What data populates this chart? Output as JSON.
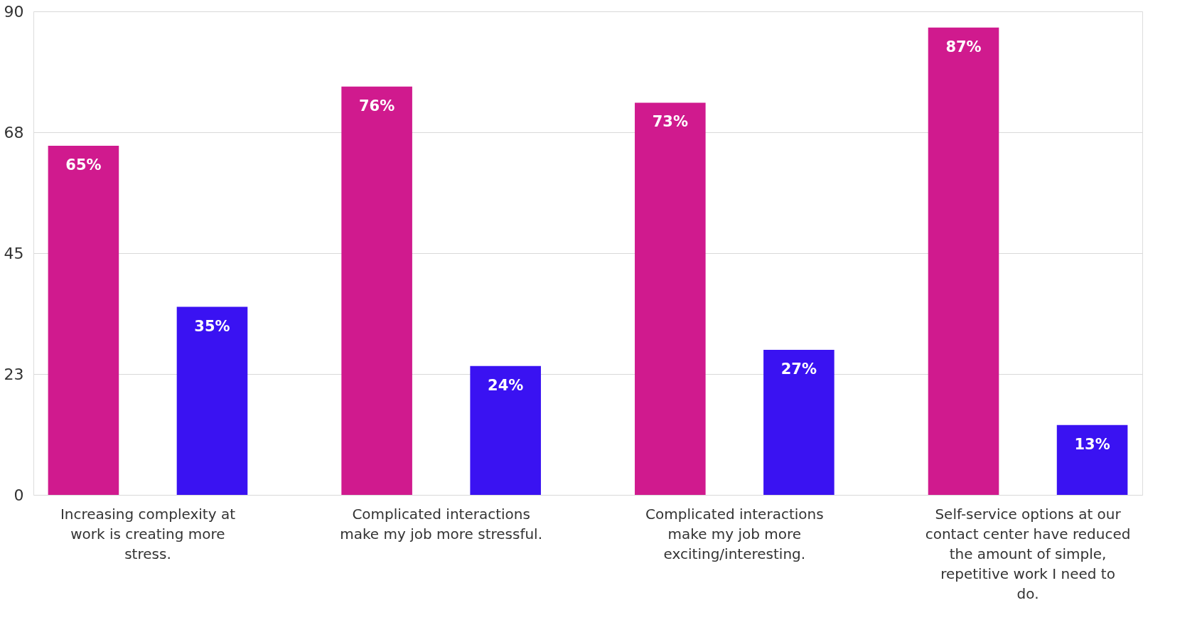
{
  "chart_data": {
    "type": "bar",
    "categories": [
      "Increasing complexity at work is creating more stress.",
      "Complicated interactions make my job more stressful.",
      "Complicated interactions make my job more exciting/interesting.",
      "Self-service options at our contact center have reduced the amount of simple, repetitive work I need to do."
    ],
    "series": [
      {
        "color": "#d01a8e",
        "values": [
          65,
          76,
          73,
          87
        ],
        "value_labels": [
          "65%",
          "76%",
          "73%",
          "87%"
        ]
      },
      {
        "color": "#3a12f2",
        "values": [
          35,
          24,
          27,
          13
        ],
        "value_labels": [
          "35%",
          "24%",
          "27%",
          "13%"
        ]
      }
    ],
    "ylim": [
      0,
      90
    ],
    "yticks": [
      0,
      {
        "value": 22.5,
        "label": "23"
      },
      {
        "value": 45,
        "label": "45"
      },
      {
        "value": 67.5,
        "label": "68"
      },
      90
    ],
    "grid": "y"
  }
}
